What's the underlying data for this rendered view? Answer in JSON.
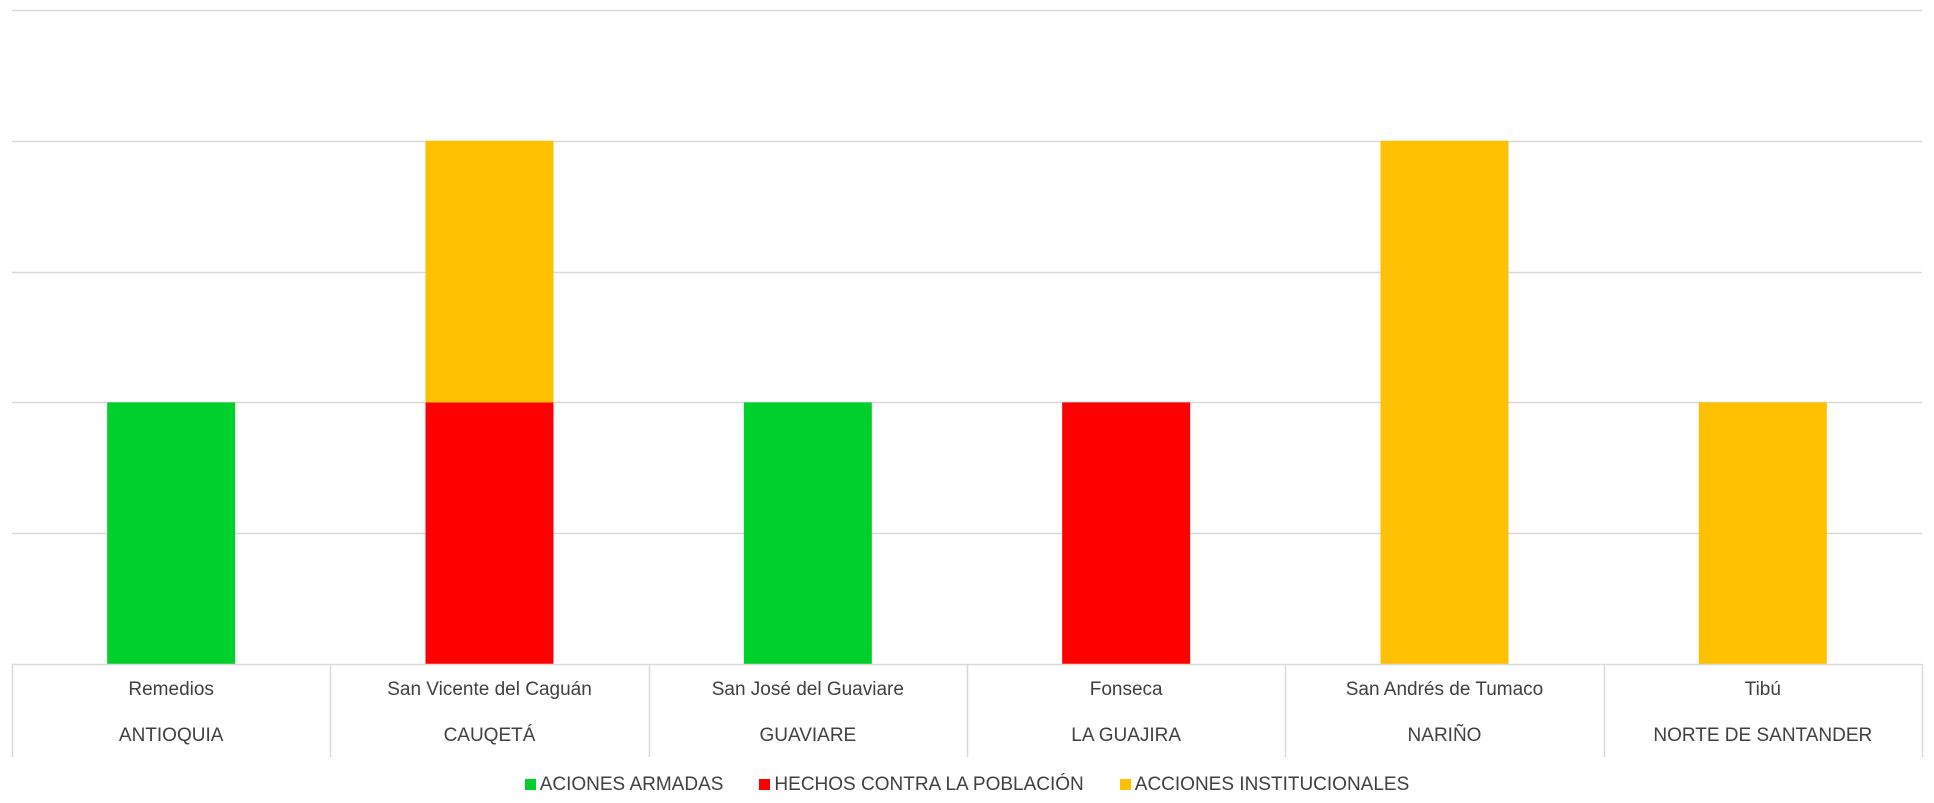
{
  "chart_data": {
    "type": "bar",
    "stacked": true,
    "categories": [
      {
        "municipio": "Remedios",
        "departamento": "ANTIOQUIA"
      },
      {
        "municipio": "San Vicente del Caguán",
        "departamento": "CAUQETÁ"
      },
      {
        "municipio": "San José del Guaviare",
        "departamento": "GUAVIARE"
      },
      {
        "municipio": "Fonseca",
        "departamento": "LA GUAJIRA"
      },
      {
        "municipio": "San Andrés de Tumaco",
        "departamento": "NARIÑO"
      },
      {
        "municipio": "Tibú",
        "departamento": "NORTE DE SANTANDER"
      }
    ],
    "series": [
      {
        "name": "ACIONES ARMADAS",
        "color": "#00d02b",
        "values": [
          1,
          0,
          1,
          0,
          0,
          0
        ]
      },
      {
        "name": "HECHOS CONTRA LA POBLACIÓN",
        "color": "#ff0000",
        "values": [
          0,
          1,
          0,
          1,
          0,
          0
        ]
      },
      {
        "name": "ACCIONES INSTITUCIONALES",
        "color": "#ffc000",
        "values": [
          0,
          1,
          0,
          0,
          2,
          1
        ]
      }
    ],
    "ylim": [
      0,
      2.5
    ],
    "grid": true,
    "gridline_step": 0.5,
    "legend_position": "bottom"
  }
}
